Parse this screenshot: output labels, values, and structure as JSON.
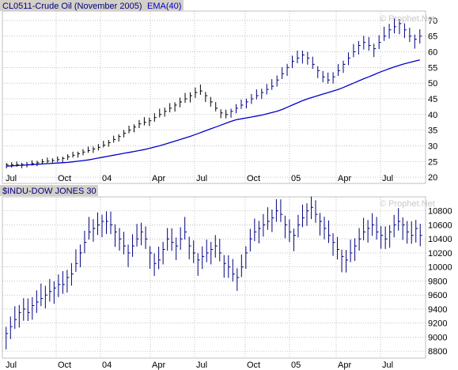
{
  "colors": {
    "background": "#ffffff",
    "frame": "#c0c0c0",
    "grid": "#9a9a9a",
    "bars": "#000080",
    "price_ticks": "#000000",
    "ema_line": "#0000cc",
    "legend_bg": "#d4d0c8",
    "title_text": "#000080",
    "watermark": "#c8c8c8"
  },
  "watermark": "© Prophet.Net",
  "chart_data": [
    {
      "type": "line",
      "title": "CL0511-Crude Oil (November 2005)",
      "indicator_label": "EMA(40)",
      "y_scale": "linear",
      "ylim": [
        18,
        73
      ],
      "y_ticks": [
        20,
        25,
        30,
        35,
        40,
        45,
        50,
        55,
        60,
        65,
        70
      ],
      "x_ticks": [
        "Jul",
        "Oct",
        "04",
        "Apr",
        "Jul",
        "Oct",
        "05",
        "Apr",
        "Jul"
      ],
      "grid": true,
      "series": [
        {
          "name": "CL0511-Crude Oil (November 2005)",
          "style": "hlc-bars",
          "values": [
            24,
            24,
            24,
            24,
            24,
            24.3,
            24.6,
            24.9,
            25.1,
            25.3,
            25.6,
            26,
            26.5,
            27,
            27.5,
            28,
            28.5,
            29,
            29.5,
            30.2,
            31,
            32,
            33,
            34,
            35,
            36,
            37,
            37.5,
            38,
            39,
            40,
            41,
            42,
            43,
            44,
            45,
            46,
            47,
            47.5,
            46,
            44,
            42,
            40.5,
            40,
            41,
            42,
            43,
            44,
            45,
            46,
            47,
            48,
            49,
            51,
            53,
            55,
            57,
            58,
            59,
            58,
            56,
            54,
            52,
            51,
            52,
            54,
            56,
            58,
            60,
            62,
            63,
            62,
            61,
            63,
            65,
            67,
            68,
            69,
            67,
            65,
            64,
            65
          ]
        },
        {
          "name": "EMA(40)",
          "style": "line",
          "values": [
            23.5,
            23.6,
            23.7,
            23.8,
            23.9,
            24,
            24.1,
            24.2,
            24.3,
            24.4,
            24.5,
            24.6,
            24.7,
            24.9,
            25.1,
            25.3,
            25.5,
            25.8,
            26.1,
            26.4,
            26.7,
            27,
            27.3,
            27.6,
            27.9,
            28.2,
            28.5,
            28.8,
            29.2,
            29.6,
            30,
            30.5,
            31,
            31.5,
            32,
            32.5,
            33,
            33.6,
            34.2,
            34.8,
            35.4,
            36,
            36.6,
            37.2,
            37.8,
            38.3,
            38.6,
            38.9,
            39.2,
            39.5,
            39.8,
            40.2,
            40.6,
            41,
            41.6,
            42.3,
            43,
            43.7,
            44.4,
            45,
            45.5,
            46,
            46.5,
            47,
            47.5,
            48,
            48.6,
            49.3,
            50,
            50.7,
            51.4,
            52,
            52.7,
            53.4,
            54,
            54.6,
            55.2,
            55.7,
            56.2,
            56.6,
            57,
            57.4
          ]
        }
      ]
    },
    {
      "type": "bar",
      "title": "$INDU-DOW JONES 30",
      "y_scale": "linear",
      "ylim": [
        8700,
        11000
      ],
      "y_ticks": [
        8800,
        9000,
        9200,
        9400,
        9600,
        9800,
        10000,
        10200,
        10400,
        10600,
        10800
      ],
      "x_ticks": [
        "Jul",
        "Oct",
        "04",
        "Apr",
        "Jul",
        "Oct",
        "05",
        "Apr",
        "Jul"
      ],
      "grid": true,
      "series": [
        {
          "name": "$INDU-DOW JONES 30",
          "style": "hlc-bars",
          "values": [
            9050,
            9150,
            9250,
            9350,
            9400,
            9350,
            9450,
            9500,
            9550,
            9600,
            9650,
            9700,
            9750,
            9750,
            9850,
            9900,
            10050,
            10200,
            10350,
            10500,
            10550,
            10600,
            10650,
            10650,
            10600,
            10500,
            10400,
            10300,
            10200,
            10300,
            10400,
            10500,
            10400,
            10200,
            10050,
            10100,
            10250,
            10400,
            10350,
            10300,
            10400,
            10500,
            10300,
            10200,
            10100,
            10150,
            10200,
            10250,
            10300,
            10200,
            10050,
            10000,
            9900,
            9850,
            10000,
            10200,
            10400,
            10500,
            10550,
            10600,
            10650,
            10700,
            10800,
            10750,
            10600,
            10500,
            10450,
            10600,
            10700,
            10800,
            10850,
            10750,
            10650,
            10550,
            10450,
            10350,
            10250,
            10150,
            10100,
            10200,
            10300,
            10400,
            10500,
            10550,
            10600,
            10500,
            10450,
            10400,
            10500,
            10600,
            10650,
            10600,
            10500,
            10450,
            10550,
            10450
          ]
        }
      ]
    }
  ]
}
